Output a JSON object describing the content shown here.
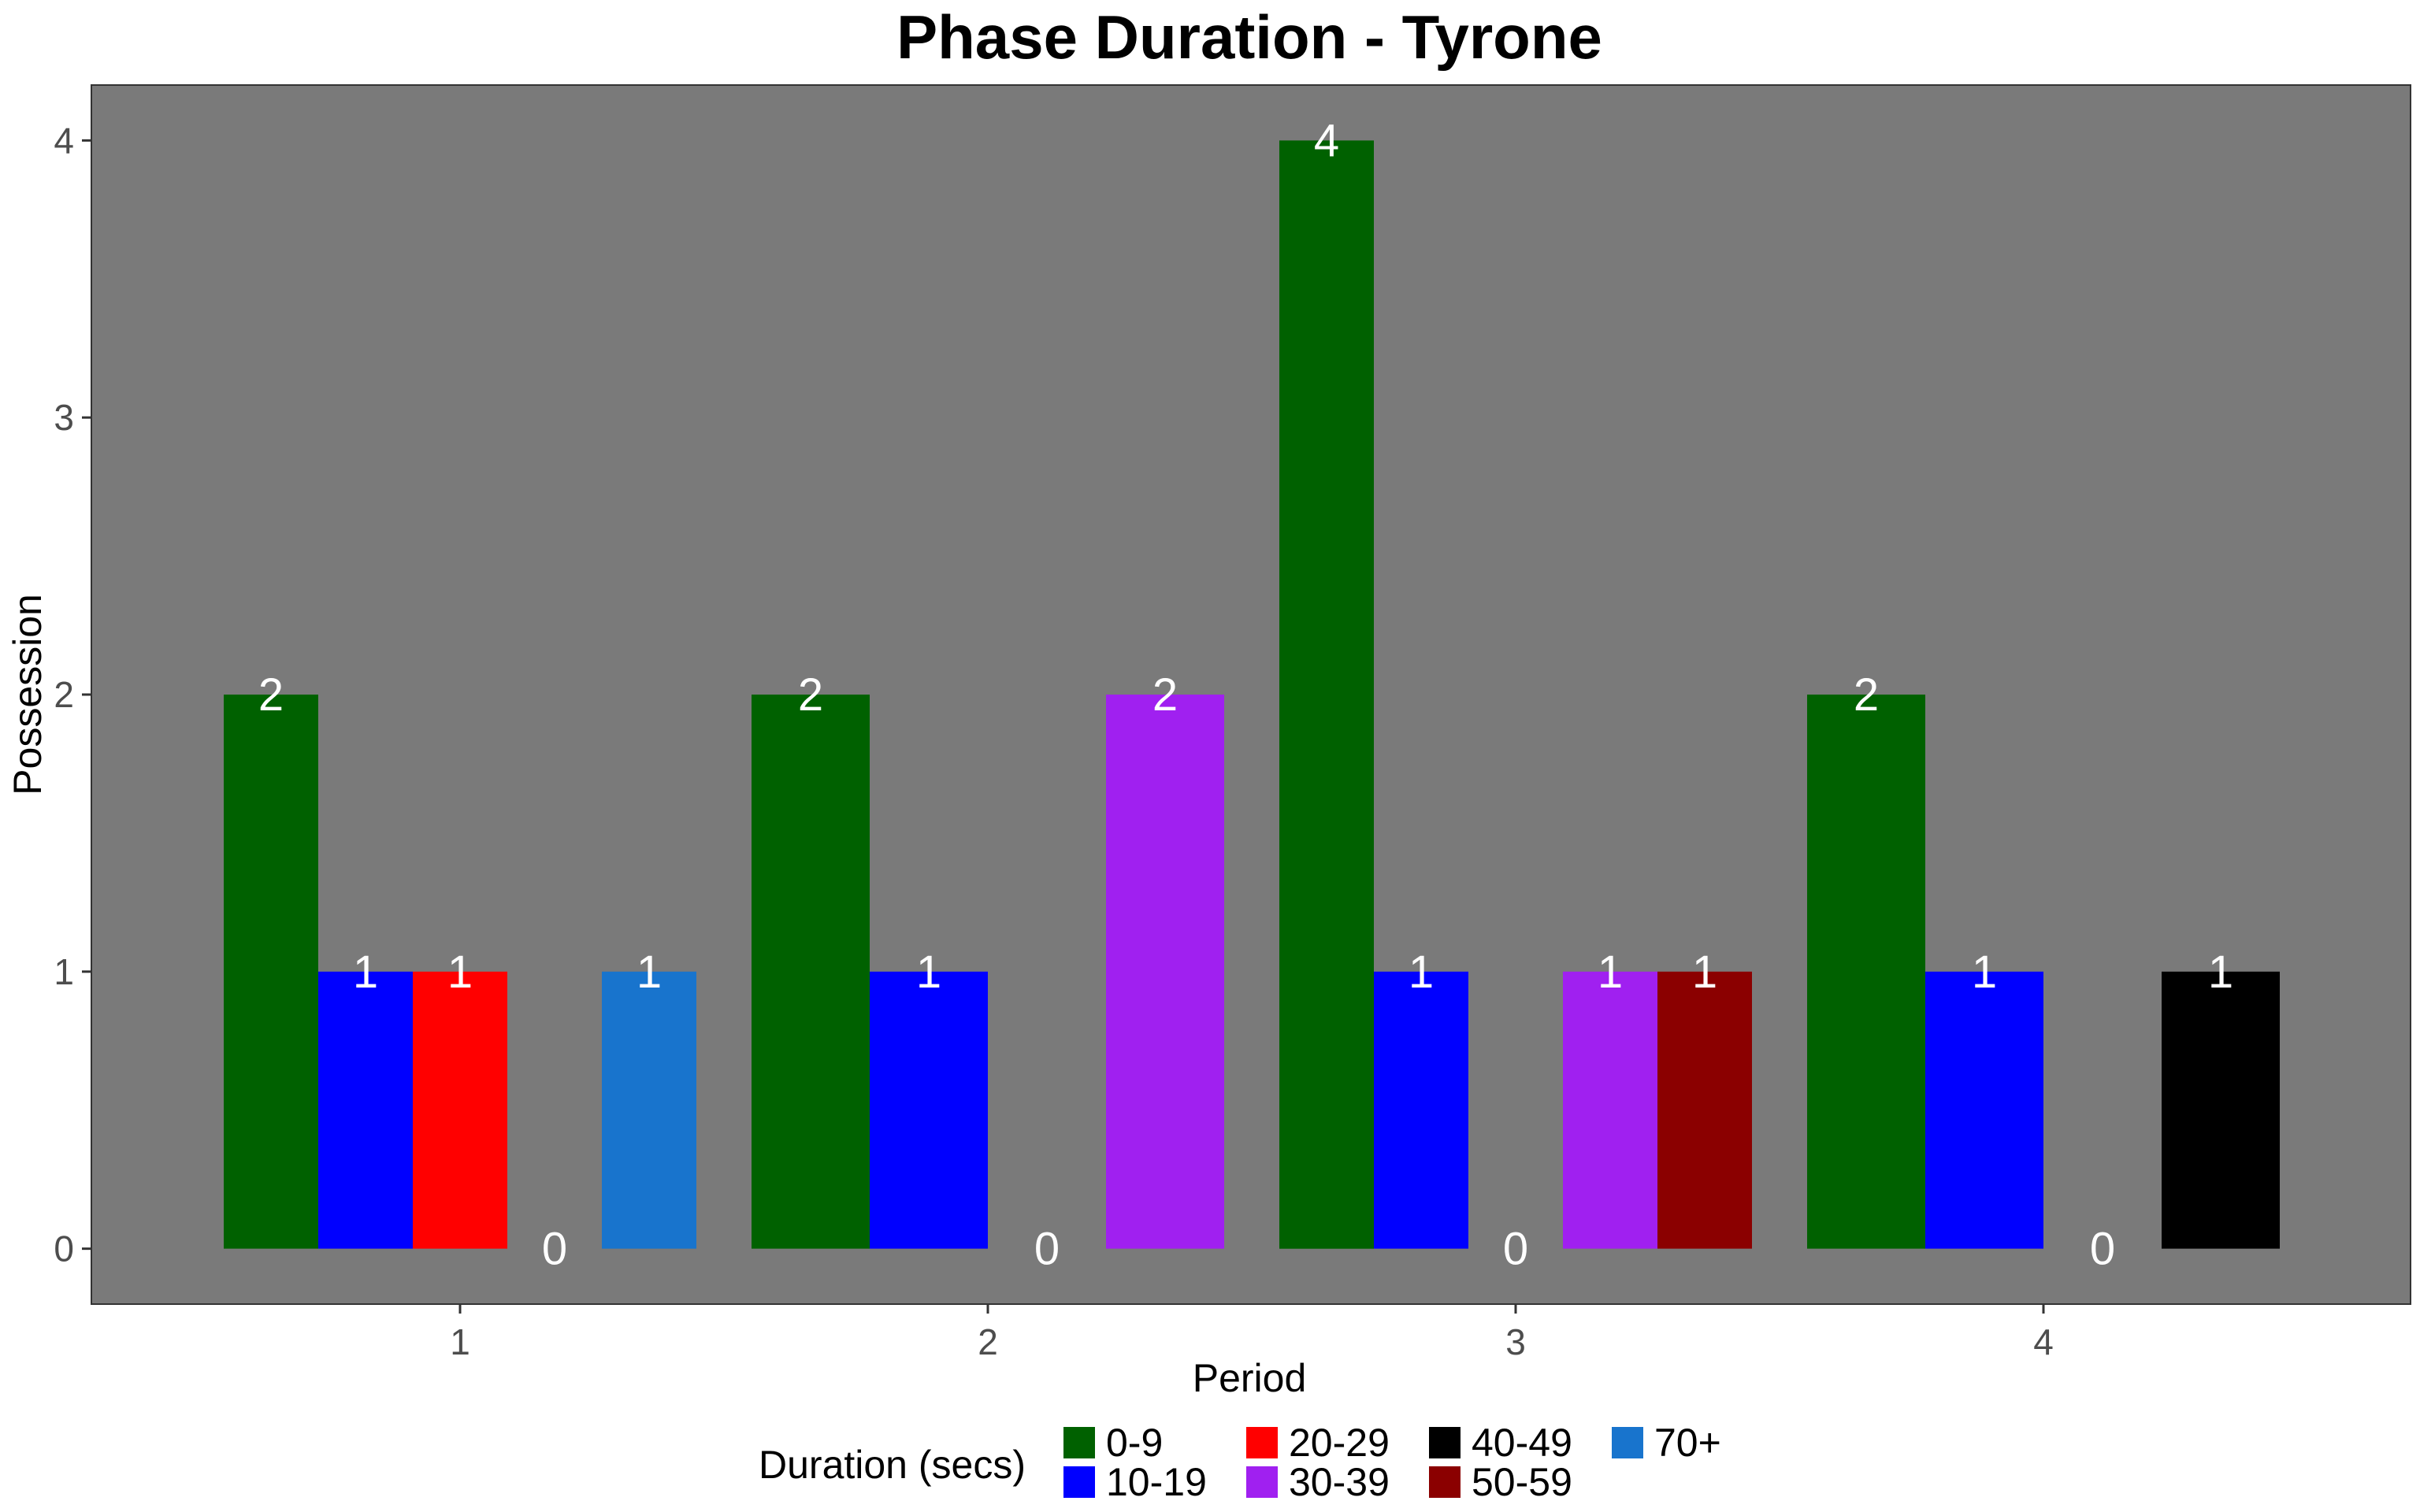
{
  "chart_data": {
    "type": "bar",
    "title": "Phase Duration - Tyrone",
    "xlabel": "Period",
    "ylabel": "Possession",
    "categories": [
      "1",
      "2",
      "3",
      "4"
    ],
    "yticks": [
      "0",
      "1",
      "2",
      "3",
      "4"
    ],
    "ylim": [
      -0.2,
      4.2
    ],
    "grid": false,
    "legend": {
      "title": "Duration (secs)",
      "position": "bottom",
      "items": [
        {
          "label": "0-9",
          "color": "#006100"
        },
        {
          "label": "10-19",
          "color": "#0000ff"
        },
        {
          "label": "20-29",
          "color": "#ff0000"
        },
        {
          "label": "30-39",
          "color": "#a020f0"
        },
        {
          "label": "40-49",
          "color": "#000000"
        },
        {
          "label": "50-59",
          "color": "#8b0000"
        },
        {
          "label": "70+",
          "color": "#1874cd"
        }
      ]
    },
    "groups": [
      {
        "period": "1",
        "bars": [
          {
            "series": "0-9",
            "value": 2
          },
          {
            "series": "10-19",
            "value": 1
          },
          {
            "series": "20-29",
            "value": 1
          },
          {
            "series": "",
            "value": 0
          },
          {
            "series": "70+",
            "value": 1
          }
        ]
      },
      {
        "period": "2",
        "bars": [
          {
            "series": "0-9",
            "value": 2
          },
          {
            "series": "10-19",
            "value": 1
          },
          {
            "series": "",
            "value": 0
          },
          {
            "series": "30-39",
            "value": 2
          }
        ]
      },
      {
        "period": "3",
        "bars": [
          {
            "series": "0-9",
            "value": 4
          },
          {
            "series": "10-19",
            "value": 1
          },
          {
            "series": "",
            "value": 0
          },
          {
            "series": "30-39",
            "value": 1
          },
          {
            "series": "50-59",
            "value": 1
          }
        ]
      },
      {
        "period": "4",
        "bars": [
          {
            "series": "0-9",
            "value": 2
          },
          {
            "series": "10-19",
            "value": 1
          },
          {
            "series": "",
            "value": 0
          },
          {
            "series": "40-49",
            "value": 1
          }
        ]
      }
    ],
    "colors": {
      "panel_background": "#7a7a7a",
      "bar_label": "#ffffff"
    }
  }
}
